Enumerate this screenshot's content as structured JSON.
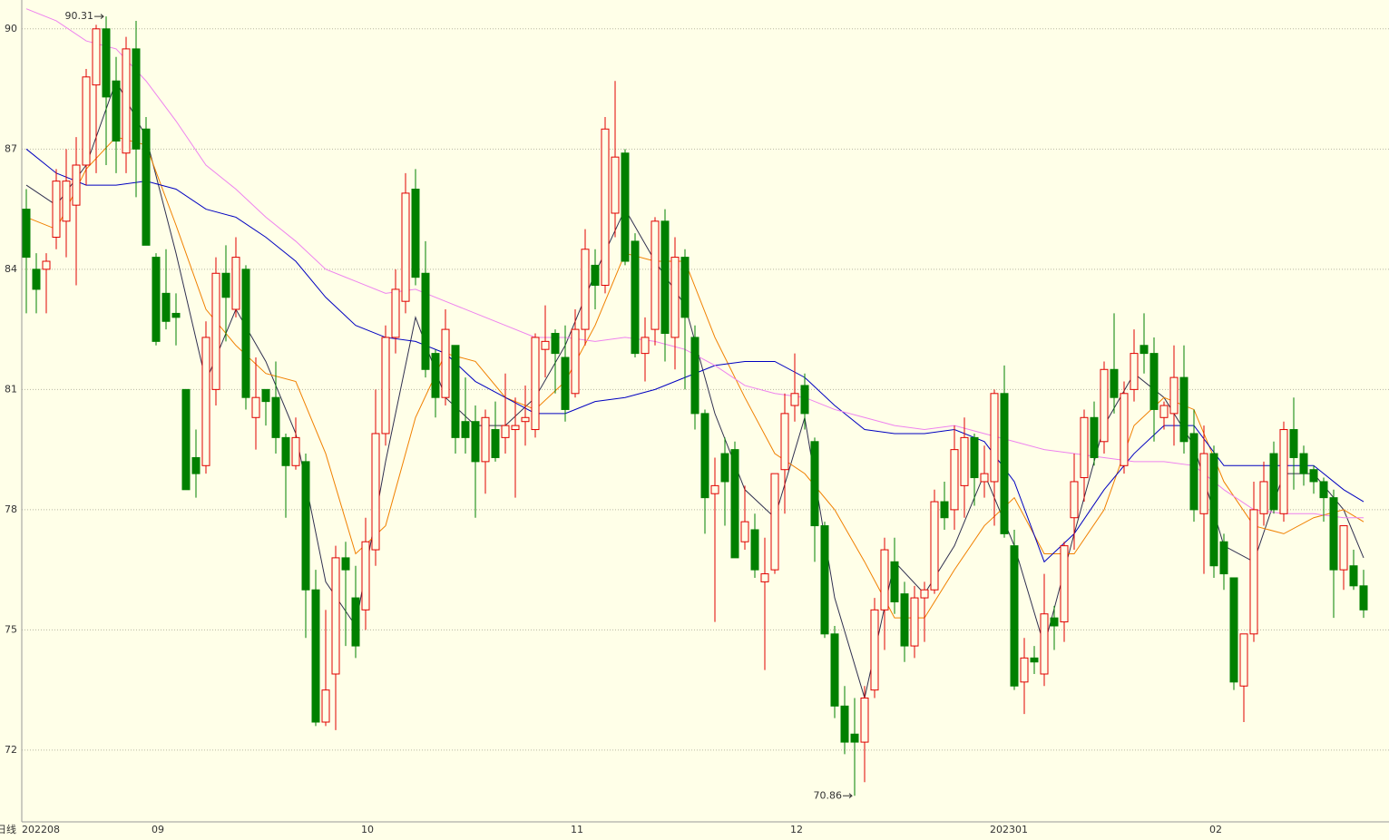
{
  "chart_data": {
    "type": "candlestick",
    "period_label": "日线",
    "categories": [
      "202208",
      null,
      null,
      null,
      null,
      null,
      null,
      null,
      null,
      null,
      null,
      null,
      null,
      "09",
      null,
      null,
      null,
      null,
      null,
      null,
      null,
      null,
      null,
      null,
      null,
      null,
      null,
      null,
      null,
      null,
      null,
      null,
      null,
      null,
      "10",
      null,
      null,
      null,
      null,
      null,
      null,
      null,
      null,
      null,
      null,
      null,
      null,
      null,
      null,
      null,
      null,
      null,
      null,
      null,
      null,
      "11",
      null,
      null,
      null,
      null,
      null,
      null,
      null,
      null,
      null,
      null,
      null,
      null,
      null,
      null,
      null,
      null,
      null,
      null,
      null,
      null,
      null,
      "12",
      null,
      null,
      null,
      null,
      null,
      null,
      null,
      null,
      null,
      null,
      null,
      null,
      null,
      null,
      null,
      null,
      null,
      null,
      null,
      "202301",
      null,
      null,
      null,
      null,
      null,
      null,
      null,
      null,
      null,
      null,
      null,
      null,
      null,
      null,
      null,
      null,
      null,
      null,
      null,
      null,
      null,
      "02",
      null,
      null,
      null,
      null,
      null,
      null,
      null,
      null,
      null,
      null,
      null,
      null,
      null,
      null,
      null
    ],
    "open": [
      85.5,
      84.0,
      84.0,
      84.8,
      85.2,
      85.6,
      86.6,
      88.6,
      90.0,
      88.7,
      86.9,
      89.5,
      87.5,
      84.3,
      83.4,
      82.9,
      81.0,
      79.3,
      79.1,
      81.0,
      83.9,
      83.0,
      84.0,
      80.3,
      81.0,
      80.8,
      79.8,
      79.1,
      79.2,
      76.0,
      72.7,
      73.9,
      76.8,
      75.8,
      75.5,
      77.0,
      79.9,
      82.3,
      83.2,
      86.0,
      83.9,
      81.9,
      80.8,
      82.1,
      80.2,
      80.2,
      79.2,
      80.0,
      79.8,
      80.0,
      80.2,
      80.0,
      82.0,
      82.4,
      81.8,
      80.9,
      82.5,
      84.1,
      83.6,
      85.4,
      86.9,
      84.7,
      81.9,
      82.5,
      85.2,
      82.3,
      84.3,
      82.3,
      80.4,
      78.4,
      79.4,
      79.5,
      77.2,
      77.5,
      76.2,
      76.5,
      79.0,
      80.6,
      81.1,
      79.7,
      77.6,
      74.9,
      73.1,
      72.4,
      72.2,
      73.5,
      75.5,
      76.7,
      75.9,
      74.6,
      75.8,
      76.0,
      78.2,
      78.0,
      78.6,
      79.8,
      78.7,
      78.7,
      80.9,
      77.1,
      73.7,
      74.3,
      73.9,
      75.3,
      75.2,
      77.8,
      78.8,
      80.3,
      79.7,
      81.5,
      79.1,
      81.0,
      82.1,
      81.9,
      80.3,
      80.4,
      81.3,
      79.9,
      77.9,
      79.4,
      77.2,
      76.3,
      73.6,
      74.9,
      77.9,
      79.4,
      77.9,
      80.0,
      79.4,
      79.0,
      78.7,
      78.3,
      76.5,
      76.6,
      76.1
    ],
    "high": [
      86.0,
      84.4,
      84.4,
      86.5,
      87.0,
      87.3,
      89.0,
      90.1,
      90.31,
      89.3,
      89.8,
      90.2,
      87.8,
      84.4,
      84.5,
      83.4,
      81.0,
      80.0,
      82.7,
      84.3,
      84.6,
      84.8,
      84.1,
      81.8,
      81.0,
      81.7,
      79.9,
      80.3,
      79.4,
      76.5,
      75.5,
      77.1,
      77.2,
      76.6,
      77.8,
      81.0,
      82.6,
      84.0,
      86.4,
      86.5,
      84.7,
      82.0,
      83.0,
      82.1,
      81.3,
      80.6,
      80.5,
      80.7,
      81.4,
      80.8,
      81.1,
      82.4,
      83.1,
      82.5,
      82.6,
      83.0,
      85.0,
      84.5,
      87.8,
      88.7,
      87.0,
      84.9,
      82.8,
      85.3,
      85.5,
      84.8,
      84.5,
      82.6,
      80.5,
      79.3,
      79.8,
      79.7,
      78.6,
      77.9,
      77.3,
      78.9,
      80.9,
      81.9,
      81.4,
      79.8,
      77.7,
      75.1,
      73.6,
      73.3,
      73.6,
      75.8,
      77.3,
      77.3,
      76.2,
      76.1,
      76.2,
      78.5,
      78.7,
      80.1,
      80.3,
      79.9,
      79.6,
      81.0,
      81.6,
      77.5,
      74.8,
      74.6,
      76.4,
      75.6,
      77.2,
      79.4,
      80.5,
      80.7,
      81.7,
      82.9,
      81.2,
      82.5,
      82.9,
      82.3,
      80.7,
      82.1,
      82.1,
      80.5,
      80.1,
      79.6,
      77.4,
      76.3,
      74.9,
      78.7,
      79.2,
      79.7,
      80.2,
      80.8,
      79.6,
      79.1,
      78.8,
      78.5,
      77.6,
      77.0,
      76.5
    ],
    "low": [
      82.9,
      82.9,
      82.9,
      84.5,
      84.3,
      83.6,
      86.1,
      86.4,
      86.6,
      86.4,
      86.4,
      85.8,
      84.6,
      82.1,
      82.5,
      82.1,
      78.5,
      78.3,
      78.9,
      80.6,
      82.2,
      82.8,
      80.5,
      79.5,
      80.1,
      79.4,
      77.8,
      79.0,
      74.8,
      72.6,
      72.6,
      72.5,
      74.6,
      74.3,
      75.0,
      76.6,
      79.6,
      81.9,
      82.9,
      83.6,
      81.3,
      80.3,
      80.6,
      79.4,
      79.4,
      77.8,
      78.4,
      79.2,
      79.4,
      78.3,
      79.6,
      79.8,
      81.3,
      80.9,
      80.2,
      80.8,
      82.1,
      83.0,
      83.4,
      84.8,
      84.1,
      81.8,
      81.2,
      82.1,
      81.7,
      81.5,
      81.0,
      80.0,
      77.4,
      75.2,
      77.6,
      76.8,
      77.0,
      76.3,
      74.0,
      76.4,
      77.9,
      80.2,
      80.0,
      76.7,
      74.8,
      72.8,
      71.9,
      70.86,
      71.2,
      73.3,
      74.5,
      75.4,
      74.2,
      74.3,
      74.7,
      75.9,
      77.5,
      77.5,
      77.8,
      78.1,
      78.3,
      77.6,
      77.3,
      73.5,
      72.9,
      73.9,
      73.6,
      74.5,
      74.7,
      77.0,
      78.2,
      79.1,
      79.4,
      80.4,
      78.9,
      80.7,
      81.4,
      79.7,
      80.0,
      79.6,
      79.4,
      77.7,
      76.4,
      76.3,
      76.0,
      73.5,
      72.7,
      74.7,
      77.6,
      77.9,
      77.7,
      78.5,
      78.6,
      78.4,
      77.7,
      75.3,
      76.0,
      76.0,
      75.3
    ],
    "close": [
      84.3,
      83.5,
      84.2,
      86.2,
      86.2,
      86.6,
      88.8,
      90.0,
      88.3,
      87.2,
      89.5,
      87.0,
      84.6,
      82.2,
      82.7,
      82.8,
      78.5,
      78.9,
      82.3,
      83.9,
      83.3,
      84.3,
      80.8,
      80.8,
      80.7,
      79.8,
      79.1,
      79.8,
      76.0,
      72.7,
      73.5,
      76.8,
      76.5,
      74.6,
      77.2,
      79.9,
      82.3,
      83.5,
      85.9,
      83.8,
      81.5,
      80.8,
      82.5,
      79.8,
      79.8,
      79.2,
      80.3,
      79.3,
      80.1,
      80.1,
      80.3,
      82.3,
      82.2,
      81.9,
      80.5,
      82.5,
      84.5,
      83.6,
      87.5,
      86.8,
      84.2,
      81.9,
      82.3,
      85.2,
      82.4,
      84.3,
      82.8,
      80.4,
      78.3,
      78.6,
      78.7,
      76.8,
      77.7,
      76.5,
      76.4,
      78.9,
      80.4,
      80.9,
      80.4,
      77.6,
      74.9,
      73.1,
      72.2,
      72.2,
      73.3,
      75.5,
      77.0,
      75.7,
      74.6,
      75.8,
      76.0,
      78.2,
      77.8,
      79.5,
      79.8,
      78.8,
      78.9,
      80.9,
      77.4,
      73.6,
      74.3,
      74.2,
      75.4,
      75.1,
      77.1,
      78.7,
      80.3,
      79.3,
      81.5,
      80.8,
      80.9,
      81.9,
      81.9,
      80.5,
      80.6,
      81.3,
      79.7,
      78.0,
      79.4,
      76.6,
      76.4,
      73.7,
      74.9,
      78.0,
      78.7,
      78.0,
      80.0,
      79.3,
      78.9,
      78.7,
      78.3,
      76.5,
      77.6,
      76.1,
      75.5
    ],
    "up_color": "#e00000",
    "down_color": "#008000",
    "ylim": [
      70.21,
      90.72
    ],
    "yticks": [
      72,
      75,
      78,
      81,
      84,
      87,
      90
    ],
    "grid": true,
    "lines": [
      {
        "color": "#303050",
        "x": [
          0,
          3,
          6,
          9,
          12,
          15,
          18,
          21,
          24,
          27,
          30,
          33,
          36,
          39,
          42,
          45,
          48,
          51,
          54,
          57,
          60,
          63,
          66,
          69,
          72,
          75,
          78,
          81,
          84,
          87,
          90,
          93,
          96,
          99,
          102,
          105,
          108,
          111,
          114,
          117,
          120,
          123,
          126,
          129,
          132,
          134
        ],
        "values": [
          86.1,
          85.6,
          86.6,
          88.7,
          87.3,
          84.4,
          81.2,
          83.0,
          81.7,
          79.9,
          76.2,
          75.1,
          79.2,
          82.8,
          80.8,
          80.1,
          80.1,
          80.8,
          82.1,
          83.9,
          85.5,
          84.2,
          83.1,
          80.4,
          78.5,
          77.8,
          80.3,
          75.8,
          73.3,
          76.7,
          75.9,
          77.1,
          78.9,
          77.1,
          74.6,
          77.4,
          80.1,
          81.4,
          80.8,
          79.6,
          77.1,
          76.7,
          78.9,
          78.9,
          78.0,
          76.8
        ]
      },
      {
        "color": "#f08000",
        "x": [
          0,
          3,
          6,
          9,
          12,
          15,
          18,
          21,
          24,
          27,
          30,
          33,
          36,
          39,
          42,
          45,
          48,
          51,
          54,
          57,
          60,
          63,
          66,
          69,
          72,
          75,
          78,
          81,
          84,
          87,
          90,
          93,
          96,
          99,
          102,
          105,
          108,
          111,
          114,
          117,
          120,
          123,
          126,
          129,
          132,
          134
        ],
        "values": [
          85.3,
          85.0,
          86.5,
          87.3,
          87.1,
          85.1,
          83.0,
          82.1,
          81.4,
          81.2,
          79.4,
          76.9,
          77.6,
          80.3,
          81.9,
          81.7,
          80.8,
          80.5,
          81.2,
          82.6,
          84.4,
          84.2,
          84.2,
          82.3,
          80.8,
          79.4,
          78.9,
          78.0,
          76.7,
          75.3,
          75.3,
          76.5,
          77.6,
          78.3,
          76.9,
          76.9,
          78.0,
          80.1,
          80.8,
          80.5,
          78.7,
          77.6,
          77.4,
          77.8,
          78.0,
          77.7
        ]
      },
      {
        "color": "#0000c0",
        "x": [
          0,
          3,
          6,
          9,
          12,
          15,
          18,
          21,
          24,
          27,
          30,
          33,
          36,
          39,
          42,
          45,
          48,
          51,
          54,
          57,
          60,
          63,
          66,
          69,
          72,
          75,
          78,
          81,
          84,
          87,
          90,
          93,
          96,
          99,
          102,
          105,
          108,
          111,
          114,
          117,
          120,
          123,
          126,
          129,
          132,
          134
        ],
        "values": [
          87.0,
          86.4,
          86.1,
          86.1,
          86.2,
          86.0,
          85.5,
          85.3,
          84.8,
          84.2,
          83.3,
          82.6,
          82.3,
          82.2,
          81.9,
          81.2,
          80.8,
          80.4,
          80.4,
          80.7,
          80.8,
          81.0,
          81.3,
          81.6,
          81.7,
          81.7,
          81.3,
          80.6,
          80.0,
          79.9,
          79.9,
          80.0,
          79.7,
          78.7,
          76.7,
          77.4,
          78.5,
          79.4,
          80.1,
          80.1,
          79.1,
          79.1,
          79.1,
          79.1,
          78.5,
          78.2
        ]
      },
      {
        "color": "#ee82ee",
        "x": [
          0,
          3,
          6,
          9,
          12,
          15,
          18,
          21,
          24,
          27,
          30,
          33,
          36,
          39,
          42,
          45,
          48,
          51,
          54,
          57,
          60,
          63,
          66,
          69,
          72,
          75,
          78,
          81,
          84,
          87,
          90,
          93,
          96,
          99,
          102,
          105,
          108,
          111,
          114,
          117,
          120,
          123,
          126,
          129,
          132,
          134
        ],
        "values": [
          90.5,
          90.2,
          89.7,
          89.5,
          88.7,
          87.7,
          86.6,
          86.0,
          85.3,
          84.7,
          84.0,
          83.7,
          83.4,
          83.5,
          83.2,
          82.9,
          82.6,
          82.3,
          82.3,
          82.2,
          82.3,
          82.2,
          82.0,
          81.6,
          81.1,
          80.9,
          80.8,
          80.5,
          80.3,
          80.1,
          80.0,
          80.1,
          79.9,
          79.7,
          79.5,
          79.4,
          79.3,
          79.2,
          79.2,
          79.1,
          78.5,
          78.0,
          77.9,
          77.9,
          77.8,
          77.8
        ]
      }
    ],
    "annotations": [
      {
        "label": "90.31",
        "value": 90.31
      },
      {
        "label": "70.86",
        "value": 70.86
      }
    ]
  }
}
